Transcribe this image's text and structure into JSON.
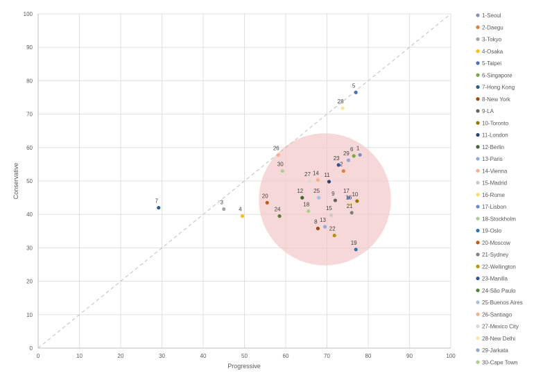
{
  "chart_data": {
    "type": "scatter",
    "xlabel": "Progressive",
    "ylabel": "Conservative",
    "xlim": [
      0,
      100
    ],
    "ylim": [
      0,
      100
    ],
    "xticks": [
      "0",
      "10",
      "20",
      "30",
      "40",
      "50",
      "60",
      "70",
      "80",
      "90",
      "100"
    ],
    "yticks": [
      "0",
      "10",
      "20",
      "30",
      "40",
      "50",
      "60",
      "70",
      "80",
      "90",
      "100"
    ],
    "grid": true,
    "legend_position": "right",
    "diagonal_line": {
      "from": [
        0,
        0
      ],
      "to": [
        100,
        100
      ],
      "style": "dashed",
      "color": "#bfbfbf"
    },
    "highlight_circle": {
      "cx": 69.5,
      "cy": 44.5,
      "radius_x_units": 16,
      "color": "#f4c7c7"
    },
    "points": [
      {
        "label": "1",
        "name": "1-Seoul",
        "x": 78.0,
        "y": 57.8,
        "color": "#7e8fc8"
      },
      {
        "label": "2",
        "name": "2-Daegu",
        "x": 74.0,
        "y": 53.0,
        "color": "#e97b32"
      },
      {
        "label": "3",
        "name": "3-Tokyo",
        "x": 45.0,
        "y": 41.6,
        "color": "#a5a5a5"
      },
      {
        "label": "4",
        "name": "4-Osaka",
        "x": 49.5,
        "y": 39.5,
        "color": "#ffc000"
      },
      {
        "label": "5",
        "name": "5-Taipei",
        "x": 77.0,
        "y": 76.5,
        "color": "#4472c4"
      },
      {
        "label": "6",
        "name": "6-Singapore",
        "x": 76.5,
        "y": 57.5,
        "color": "#70ad47"
      },
      {
        "label": "7",
        "name": "7-Hong Kong",
        "x": 29.2,
        "y": 42.0,
        "color": "#255e91"
      },
      {
        "label": "8",
        "name": "8-New York",
        "x": 67.8,
        "y": 35.8,
        "color": "#9e480e"
      },
      {
        "label": "9",
        "name": "9-LA",
        "x": 72.0,
        "y": 44.2,
        "color": "#636363"
      },
      {
        "label": "10",
        "name": "10-Toronto",
        "x": 77.3,
        "y": 44.0,
        "color": "#997300"
      },
      {
        "label": "11",
        "name": "11-London",
        "x": 70.5,
        "y": 49.8,
        "color": "#264478"
      },
      {
        "label": "12",
        "name": "12-Berlin",
        "x": 64.0,
        "y": 45.0,
        "color": "#43682b"
      },
      {
        "label": "13",
        "name": "13-Paris",
        "x": 69.5,
        "y": 36.3,
        "color": "#8faadc"
      },
      {
        "label": "14",
        "name": "14-Vienna",
        "x": 67.8,
        "y": 50.3,
        "color": "#f4b183"
      },
      {
        "label": "15",
        "name": "15-Madrid",
        "x": 71.0,
        "y": 39.8,
        "color": "#c9c9c9"
      },
      {
        "label": "16",
        "name": "16-Rome",
        "x": 75.8,
        "y": 43.0,
        "color": "#ffd966"
      },
      {
        "label": "17",
        "name": "17-Lisbon",
        "x": 75.2,
        "y": 45.0,
        "color": "#698ed0"
      },
      {
        "label": "18",
        "name": "18-Stockholm",
        "x": 65.5,
        "y": 41.0,
        "color": "#a9d18e"
      },
      {
        "label": "19",
        "name": "19-Oslo",
        "x": 77.0,
        "y": 29.5,
        "color": "#2e75b6"
      },
      {
        "label": "20",
        "name": "20-Moscow",
        "x": 55.5,
        "y": 43.5,
        "color": "#c55a11"
      },
      {
        "label": "21",
        "name": "21-Sydney",
        "x": 76.0,
        "y": 40.5,
        "color": "#7f7f7f"
      },
      {
        "label": "22",
        "name": "22-Wellington",
        "x": 71.8,
        "y": 33.7,
        "color": "#bf9000"
      },
      {
        "label": "23",
        "name": "23-Manilla",
        "x": 72.8,
        "y": 54.8,
        "color": "#2f5597"
      },
      {
        "label": "24",
        "name": "24-São Paulo",
        "x": 58.5,
        "y": 39.5,
        "color": "#548235"
      },
      {
        "label": "25",
        "name": "25-Buenos Aires",
        "x": 68.0,
        "y": 45.0,
        "color": "#9dc3e6"
      },
      {
        "label": "26",
        "name": "26-Santiago",
        "x": 58.2,
        "y": 57.8,
        "color": "#f4b183"
      },
      {
        "label": "27",
        "name": "27-Mexico City",
        "x": 65.8,
        "y": 50.0,
        "color": "#d9d9d9"
      },
      {
        "label": "28",
        "name": "28-New Delhi",
        "x": 73.8,
        "y": 71.8,
        "color": "#ffe699"
      },
      {
        "label": "29",
        "name": "29-Jarkata",
        "x": 75.2,
        "y": 56.2,
        "color": "#8ea5d6"
      },
      {
        "label": "30",
        "name": "30-Cape Town",
        "x": 59.2,
        "y": 53.0,
        "color": "#a9d18e"
      }
    ]
  }
}
